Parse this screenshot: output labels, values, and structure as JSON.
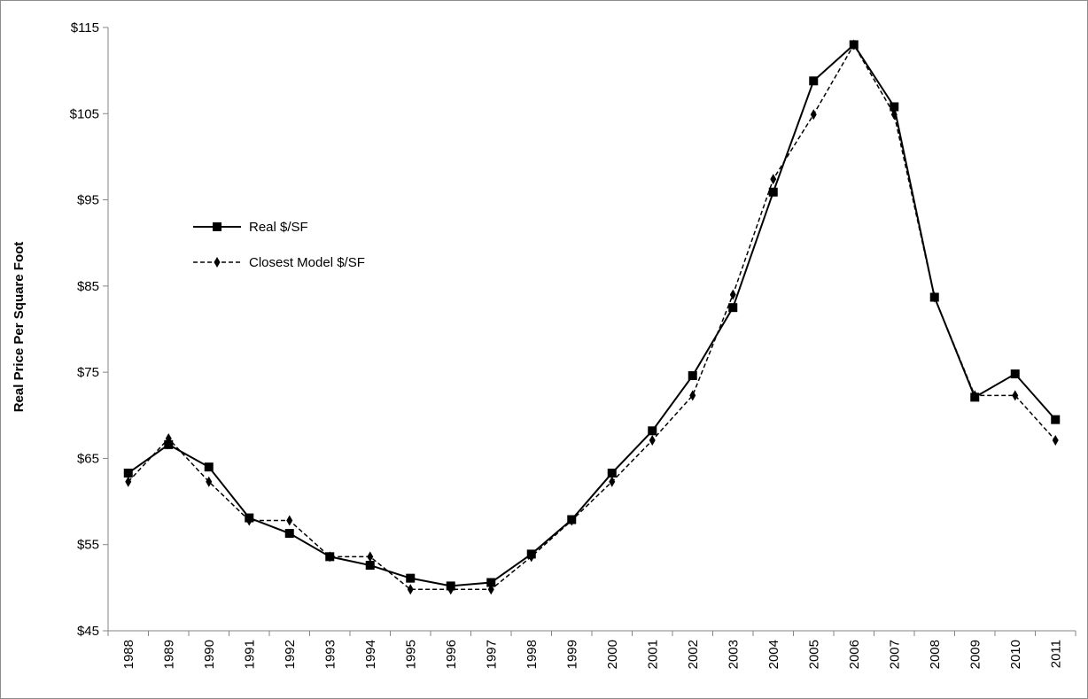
{
  "chart_data": {
    "type": "line",
    "title": "",
    "xlabel": "",
    "ylabel": "Real Price Per Square Foot",
    "ylim": [
      45,
      115
    ],
    "yticks": [
      45,
      55,
      65,
      75,
      85,
      95,
      105,
      115
    ],
    "ytick_labels": [
      "$45",
      "$55",
      "$65",
      "$75",
      "$85",
      "$95",
      "$105",
      "$115"
    ],
    "grid": false,
    "legend_position": "left-upper",
    "categories": [
      "1988",
      "1989",
      "1990",
      "1991",
      "1992",
      "1993",
      "1994",
      "1995",
      "1996",
      "1997",
      "1998",
      "1999",
      "2000",
      "2001",
      "2002",
      "2003",
      "2004",
      "2005",
      "2006",
      "2007",
      "2008",
      "2009",
      "2010",
      "2011"
    ],
    "series": [
      {
        "name": "Real $/SF",
        "style": "solid",
        "marker": "square",
        "color": "#000000",
        "values": [
          63.3,
          66.6,
          64.0,
          58.1,
          56.3,
          53.6,
          52.6,
          51.1,
          50.2,
          50.6,
          53.9,
          57.9,
          63.3,
          68.2,
          74.6,
          82.5,
          95.9,
          108.8,
          113.0,
          105.8,
          83.7,
          72.1,
          74.8,
          69.5
        ]
      },
      {
        "name": "Closest Model $/SF",
        "style": "dashed",
        "marker": "diamond",
        "color": "#000000",
        "values": [
          62.3,
          67.3,
          62.3,
          57.8,
          57.8,
          53.6,
          53.6,
          49.8,
          49.8,
          49.8,
          53.6,
          57.8,
          62.3,
          67.1,
          72.3,
          84.0,
          97.4,
          104.9,
          113.0,
          104.9,
          83.7,
          72.3,
          72.3,
          67.1
        ]
      }
    ]
  }
}
